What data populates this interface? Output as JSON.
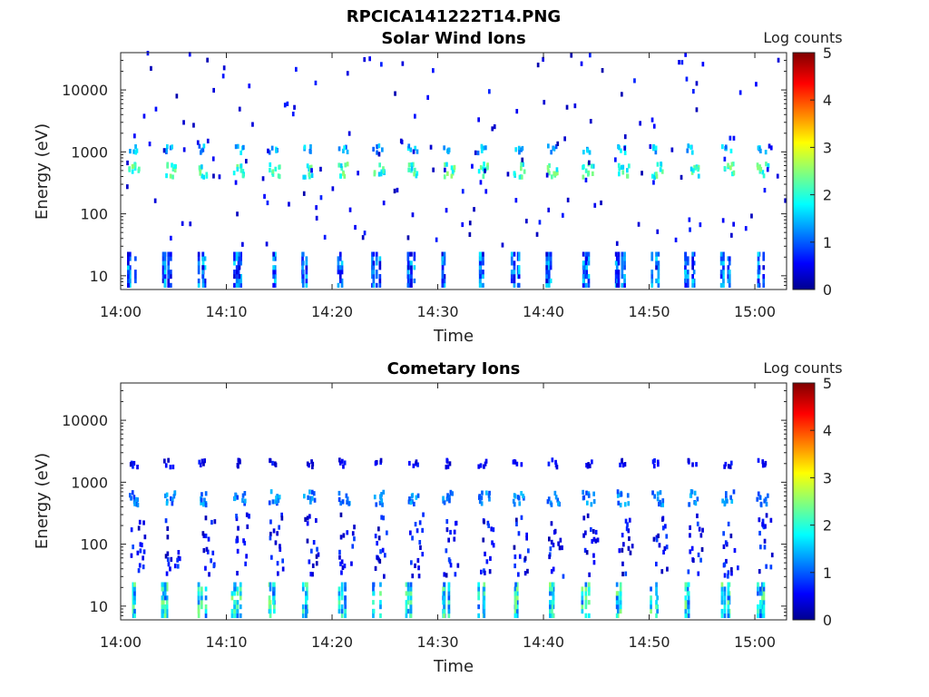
{
  "figure_title": "RPCICA141222T14.PNG",
  "chart_data": [
    {
      "type": "heatmap",
      "title": "Solar Wind Ions",
      "xlabel": "Time",
      "ylabel": "Energy (eV)",
      "x_ticks": [
        "14:00",
        "14:10",
        "14:20",
        "14:30",
        "14:40",
        "14:50",
        "15:00"
      ],
      "x_range": [
        "14:00",
        "15:03"
      ],
      "y_scale": "log",
      "y_ticks": [
        10,
        100,
        1000,
        10000
      ],
      "y_range": [
        6,
        40000
      ],
      "colorbar": {
        "label": "Log counts",
        "range": [
          0,
          5
        ],
        "ticks": [
          0,
          1,
          2,
          3,
          4,
          5
        ],
        "colormap": "jet"
      },
      "features": {
        "sweep_period_minutes": 3.3,
        "low_energy_band": {
          "energy_range_eV": [
            7,
            25
          ],
          "typical_log_counts": [
            0.4,
            1.8
          ]
        },
        "main_peak": {
          "energy_eV": 500,
          "typical_log_counts": [
            1.6,
            2.6
          ]
        },
        "secondary_peak": {
          "energy_eV": 1100,
          "typical_log_counts": [
            1.0,
            1.9
          ]
        },
        "background": {
          "energy_range_eV": [
            30,
            40000
          ],
          "typical_log_counts": [
            0.2,
            0.8
          ]
        }
      }
    },
    {
      "type": "heatmap",
      "title": "Cometary Ions",
      "xlabel": "Time",
      "ylabel": "Energy (eV)",
      "x_ticks": [
        "14:00",
        "14:10",
        "14:20",
        "14:30",
        "14:40",
        "14:50",
        "15:00"
      ],
      "x_range": [
        "14:00",
        "15:03"
      ],
      "y_scale": "log",
      "y_ticks": [
        10,
        100,
        1000,
        10000
      ],
      "y_range": [
        6,
        40000
      ],
      "colorbar": {
        "label": "Log counts",
        "range": [
          0,
          5
        ],
        "ticks": [
          0,
          1,
          2,
          3,
          4,
          5
        ],
        "colormap": "jet"
      },
      "features": {
        "sweep_period_minutes": 3.3,
        "low_energy_band": {
          "energy_range_eV": [
            7,
            25
          ],
          "typical_log_counts": [
            1.0,
            2.6
          ]
        },
        "main_peak": {
          "energy_eV": 550,
          "typical_log_counts": [
            0.9,
            1.6
          ]
        },
        "secondary_peak": {
          "energy_eV": 2000,
          "typical_log_counts": [
            0.3,
            0.8
          ]
        },
        "mid_energy_streaks": {
          "energy_range_eV": [
            30,
            300
          ],
          "typical_log_counts": [
            0.2,
            1.0
          ]
        }
      }
    }
  ]
}
